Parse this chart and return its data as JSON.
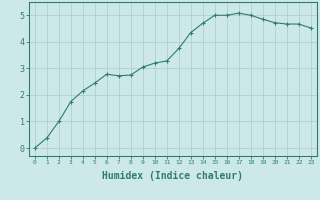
{
  "x": [
    0,
    1,
    2,
    3,
    4,
    5,
    6,
    7,
    8,
    9,
    10,
    11,
    12,
    13,
    14,
    15,
    16,
    17,
    18,
    19,
    20,
    21,
    22,
    23
  ],
  "y": [
    0.0,
    0.38,
    1.0,
    1.75,
    2.15,
    2.45,
    2.78,
    2.72,
    2.75,
    3.05,
    3.2,
    3.28,
    3.75,
    4.35,
    4.7,
    5.0,
    5.0,
    5.08,
    5.0,
    4.85,
    4.72,
    4.67,
    4.67,
    4.52
  ],
  "line_color": "#2e7d6e",
  "marker": "+",
  "marker_size": 3,
  "marker_linewidth": 0.8,
  "bg_color": "#cce8e8",
  "grid_color": "#b0d0d0",
  "xlabel": "Humidex (Indice chaleur)",
  "xlabel_fontsize": 7,
  "ylabel_ticks": [
    0,
    1,
    2,
    3,
    4,
    5
  ],
  "xlim": [
    -0.5,
    23.5
  ],
  "ylim": [
    -0.3,
    5.5
  ],
  "tick_color": "#2e7d6e",
  "spine_color": "#2e7d6e",
  "font_color": "#2e7d6e"
}
